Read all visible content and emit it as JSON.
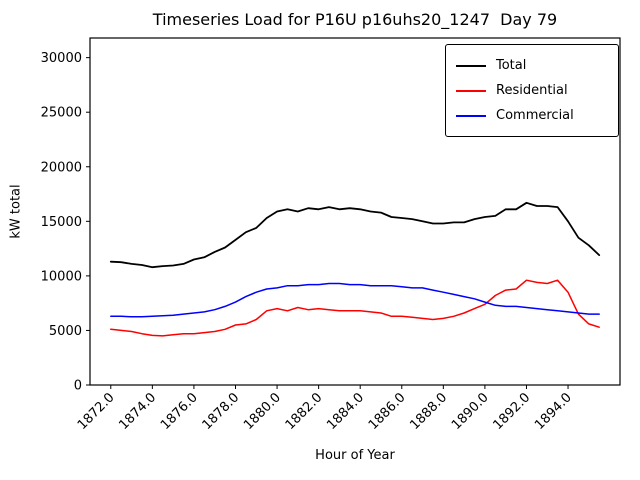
{
  "chart_data": {
    "type": "line",
    "title": "Timeseries Load for P16U p16uhs20_1247  Day 79",
    "xlabel": "Hour of Year",
    "ylabel": "kW total",
    "xlim": [
      1871.0,
      1896.5
    ],
    "ylim": [
      0,
      31800
    ],
    "xticks": [
      1872,
      1874,
      1876,
      1878,
      1880,
      1882,
      1884,
      1886,
      1888,
      1890,
      1892,
      1894
    ],
    "xtick_labels": [
      "1872.0",
      "1874.0",
      "1876.0",
      "1878.0",
      "1880.0",
      "1882.0",
      "1884.0",
      "1886.0",
      "1888.0",
      "1890.0",
      "1892.0",
      "1894.0"
    ],
    "yticks": [
      0,
      5000,
      10000,
      15000,
      20000,
      25000,
      30000
    ],
    "ytick_labels": [
      "0",
      "5000",
      "10000",
      "15000",
      "20000",
      "25000",
      "30000"
    ],
    "grid": false,
    "legend_position": "upper right",
    "x": [
      1872.0,
      1872.5,
      1873.0,
      1873.5,
      1874.0,
      1874.5,
      1875.0,
      1875.5,
      1876.0,
      1876.5,
      1877.0,
      1877.5,
      1878.0,
      1878.5,
      1879.0,
      1879.5,
      1880.0,
      1880.5,
      1881.0,
      1881.5,
      1882.0,
      1882.5,
      1883.0,
      1883.5,
      1884.0,
      1884.5,
      1885.0,
      1885.5,
      1886.0,
      1886.5,
      1887.0,
      1887.5,
      1888.0,
      1888.5,
      1889.0,
      1889.5,
      1890.0,
      1890.5,
      1891.0,
      1891.5,
      1892.0,
      1892.5,
      1893.0,
      1893.5,
      1894.0,
      1894.5,
      1895.0,
      1895.5
    ],
    "series": [
      {
        "name": "Total",
        "color": "#000000",
        "linewidth": 1.8,
        "values": [
          11300,
          11250,
          11100,
          11000,
          10800,
          10900,
          10950,
          11100,
          11500,
          11700,
          12200,
          12600,
          13300,
          14000,
          14400,
          15300,
          15900,
          16100,
          15900,
          16200,
          16100,
          16300,
          16100,
          16200,
          16100,
          15900,
          15800,
          15400,
          15300,
          15200,
          15000,
          14800,
          14800,
          14900,
          14900,
          15200,
          15400,
          15500,
          16100,
          16100,
          16700,
          16400,
          16400,
          16300,
          15000,
          13500,
          12800,
          11900
        ]
      },
      {
        "name": "Residential",
        "color": "#ff0000",
        "linewidth": 1.5,
        "values": [
          5100,
          5000,
          4900,
          4700,
          4550,
          4500,
          4600,
          4700,
          4700,
          4800,
          4900,
          5100,
          5500,
          5600,
          6000,
          6800,
          7000,
          6800,
          7100,
          6900,
          7000,
          6900,
          6800,
          6800,
          6800,
          6700,
          6600,
          6300,
          6300,
          6200,
          6100,
          6000,
          6100,
          6300,
          6600,
          7000,
          7400,
          8200,
          8700,
          8800,
          9600,
          9400,
          9300,
          9600,
          8500,
          6500,
          5600,
          5300
        ]
      },
      {
        "name": "Commercial",
        "color": "#0000ff",
        "linewidth": 1.5,
        "values": [
          6300,
          6300,
          6250,
          6250,
          6300,
          6350,
          6400,
          6500,
          6600,
          6700,
          6900,
          7200,
          7600,
          8100,
          8500,
          8800,
          8900,
          9100,
          9100,
          9200,
          9200,
          9300,
          9300,
          9200,
          9200,
          9100,
          9100,
          9100,
          9000,
          8900,
          8900,
          8700,
          8500,
          8300,
          8100,
          7900,
          7600,
          7300,
          7200,
          7200,
          7100,
          7000,
          6900,
          6800,
          6700,
          6600,
          6500,
          6500
        ]
      }
    ]
  }
}
